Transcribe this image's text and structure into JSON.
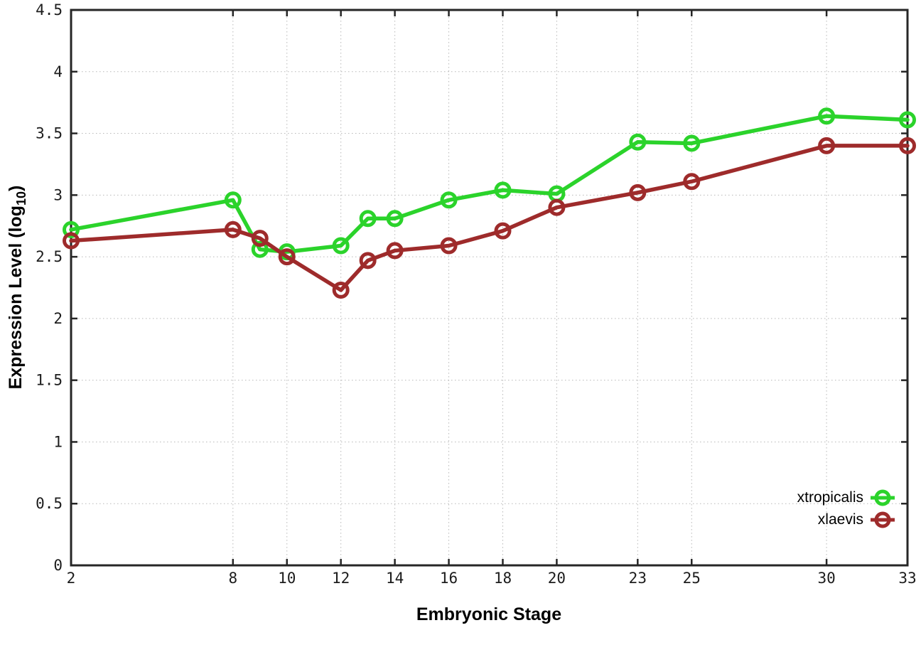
{
  "chart_data": {
    "type": "line",
    "title": "",
    "xlabel": "Embryonic Stage",
    "ylabel": "Expression Level (log10)",
    "ylabel_main": "Expression Level (log",
    "ylabel_sub": "10",
    "ylabel_close": ")",
    "xlim": [
      2,
      33
    ],
    "ylim": [
      0,
      4.5
    ],
    "x_ticks": [
      2,
      8,
      10,
      12,
      14,
      16,
      18,
      20,
      23,
      25,
      30,
      33
    ],
    "x_tick_labels": [
      "2",
      "8",
      "10",
      "12",
      "14",
      "16",
      "18",
      "20",
      "23",
      "25",
      "30",
      "33"
    ],
    "y_ticks": [
      0,
      0.5,
      1,
      1.5,
      2,
      2.5,
      3,
      3.5,
      4,
      4.5
    ],
    "y_tick_labels": [
      "0",
      "0.5",
      "1",
      "1.5",
      "2",
      "2.5",
      "3",
      "3.5",
      "4",
      "4.5"
    ],
    "grid": true,
    "legend_position": "bottom-right-inside",
    "x": [
      2,
      8,
      9,
      10,
      12,
      13,
      14,
      16,
      18,
      20,
      23,
      25,
      30,
      33
    ],
    "series": [
      {
        "name": "xtropicalis",
        "color": "#2bd32b",
        "marker": "open-circle",
        "values": [
          2.72,
          2.96,
          2.56,
          2.54,
          2.59,
          2.81,
          2.81,
          2.96,
          3.04,
          3.01,
          3.43,
          3.42,
          3.64,
          3.61
        ]
      },
      {
        "name": "xlaevis",
        "color": "#9e2b2b",
        "marker": "open-circle",
        "values": [
          2.63,
          2.72,
          2.65,
          2.5,
          2.23,
          2.47,
          2.55,
          2.59,
          2.71,
          2.9,
          3.02,
          3.11,
          3.4,
          3.4
        ]
      }
    ],
    "colors": {
      "axis": "#262626",
      "grid": "#b8b8b8",
      "tick_text": "#1c1c1c",
      "background": "#ffffff"
    }
  }
}
